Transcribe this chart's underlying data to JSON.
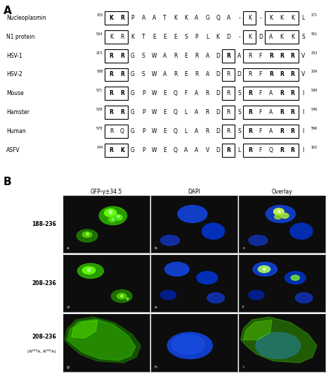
{
  "panel_A_label": "A",
  "panel_B_label": "B",
  "sequences": [
    {
      "name": "Nucleoplasmin",
      "start": "155",
      "end": "171",
      "seq": [
        "K",
        "R",
        "P",
        "A",
        "A",
        "T",
        "K",
        "K",
        "A",
        "G",
        "Q",
        "A",
        "-",
        "K",
        "-",
        "K",
        "K",
        "K",
        "L"
      ],
      "box_groups": [
        [
          0,
          1
        ],
        [
          13
        ],
        [
          15,
          16,
          17
        ]
      ],
      "bold": [
        true,
        true,
        false,
        false,
        false,
        false,
        false,
        false,
        false,
        false,
        false,
        false,
        false,
        false,
        false,
        false,
        false,
        false,
        false
      ]
    },
    {
      "name": "N1 protein",
      "start": "534",
      "end": "551",
      "seq": [
        "K",
        "R",
        "K",
        "T",
        "E",
        "E",
        "E",
        "S",
        "P",
        "L",
        "K",
        "D",
        "-",
        "K",
        "D",
        "A",
        "K",
        "K",
        "S"
      ],
      "box_groups": [
        [
          0,
          1
        ],
        [
          13
        ],
        [
          15,
          16,
          17
        ]
      ],
      "bold": [
        false,
        false,
        false,
        false,
        false,
        false,
        false,
        false,
        false,
        false,
        false,
        false,
        false,
        false,
        false,
        false,
        false,
        false,
        false
      ]
    },
    {
      "name": "HSV-1",
      "start": "215",
      "end": "233",
      "seq": [
        "R",
        "R",
        "G",
        "S",
        "W",
        "A",
        "R",
        "E",
        "R",
        "A",
        "D",
        "R",
        "A",
        "R",
        "F",
        "R",
        "R",
        "R",
        "V"
      ],
      "box_groups": [
        [
          0,
          1
        ],
        [
          11
        ],
        [
          13,
          14,
          15,
          16,
          17
        ]
      ],
      "bold": [
        true,
        true,
        false,
        false,
        false,
        false,
        false,
        false,
        false,
        false,
        false,
        true,
        false,
        false,
        false,
        true,
        true,
        true,
        false
      ]
    },
    {
      "name": "HSV-2",
      "start": "188",
      "end": "206",
      "seq": [
        "R",
        "R",
        "G",
        "S",
        "W",
        "A",
        "R",
        "E",
        "R",
        "A",
        "D",
        "R",
        "D",
        "R",
        "F",
        "R",
        "R",
        "R",
        "V"
      ],
      "box_groups": [
        [
          0,
          1
        ],
        [
          11
        ],
        [
          13,
          14,
          15,
          16,
          17
        ]
      ],
      "bold": [
        true,
        true,
        false,
        false,
        false,
        false,
        false,
        false,
        false,
        false,
        false,
        false,
        false,
        false,
        false,
        true,
        true,
        true,
        false
      ]
    },
    {
      "name": "Mouse",
      "start": "571",
      "end": "589",
      "seq": [
        "R",
        "R",
        "G",
        "P",
        "W",
        "E",
        "Q",
        "F",
        "A",
        "R",
        "D",
        "R",
        "S",
        "R",
        "F",
        "A",
        "R",
        "R",
        "I"
      ],
      "box_groups": [
        [
          0,
          1
        ],
        [
          11
        ],
        [
          13,
          14,
          15,
          16,
          17
        ]
      ],
      "bold": [
        true,
        true,
        false,
        false,
        false,
        false,
        false,
        false,
        false,
        false,
        false,
        false,
        false,
        true,
        false,
        false,
        true,
        true,
        false
      ]
    },
    {
      "name": "Hamster",
      "start": "528",
      "end": "546",
      "seq": [
        "R",
        "R",
        "G",
        "P",
        "W",
        "E",
        "Q",
        "L",
        "A",
        "R",
        "D",
        "R",
        "S",
        "R",
        "F",
        "A",
        "R",
        "R",
        "I"
      ],
      "box_groups": [
        [
          0,
          1
        ],
        [
          11
        ],
        [
          13,
          14,
          15,
          16,
          17
        ]
      ],
      "bold": [
        true,
        true,
        false,
        false,
        false,
        false,
        false,
        false,
        false,
        false,
        false,
        false,
        false,
        true,
        false,
        false,
        true,
        true,
        false
      ]
    },
    {
      "name": "Human",
      "start": "578",
      "end": "596",
      "seq": [
        "R",
        "Q",
        "G",
        "P",
        "W",
        "E",
        "Q",
        "L",
        "A",
        "R",
        "D",
        "R",
        "S",
        "R",
        "F",
        "A",
        "R",
        "R",
        "I"
      ],
      "box_groups": [
        [
          0,
          1
        ],
        [
          11
        ],
        [
          13,
          14,
          15,
          16,
          17
        ]
      ],
      "bold": [
        false,
        false,
        false,
        false,
        false,
        false,
        false,
        false,
        false,
        false,
        false,
        false,
        false,
        true,
        false,
        false,
        true,
        true,
        false
      ]
    },
    {
      "name": "ASFV",
      "start": "144",
      "end": "162",
      "seq": [
        "R",
        "K",
        "G",
        "P",
        "W",
        "E",
        "Q",
        "A",
        "A",
        "V",
        "D",
        "R",
        "L",
        "R",
        "F",
        "Q",
        "R",
        "R",
        "I"
      ],
      "box_groups": [
        [
          0,
          1
        ],
        [
          11
        ],
        [
          13,
          14,
          15,
          16,
          17
        ]
      ],
      "bold": [
        true,
        true,
        false,
        false,
        false,
        false,
        false,
        false,
        false,
        false,
        false,
        true,
        false,
        true,
        false,
        false,
        true,
        true,
        false
      ]
    }
  ],
  "microscopy_cols": [
    "GFP-γ±34.5",
    "DAPI",
    "Overlay"
  ],
  "letters": [
    [
      "a",
      "b",
      "c"
    ],
    [
      "d",
      "e",
      "f"
    ],
    [
      "g",
      "h",
      "i"
    ]
  ],
  "row_label_texts": [
    "188-236",
    "208-236",
    "208-236"
  ],
  "row_label_sub": [
    "",
    "",
    "(R²¹⁵A, R²¹⁶A)"
  ],
  "bg_color": "#0d0d0d"
}
